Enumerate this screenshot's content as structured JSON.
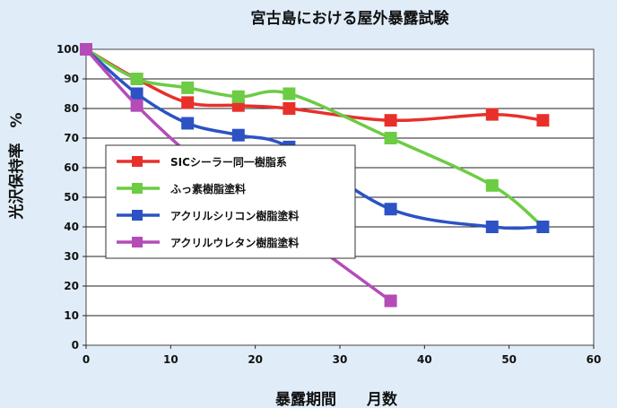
{
  "chart_data": {
    "type": "line",
    "title": "宮古島における屋外暴露試験",
    "xlabel": "暴露期間　　月数",
    "ylabel": "光沢保持率　%",
    "xlim": [
      0,
      60
    ],
    "ylim": [
      0,
      100
    ],
    "xticks": [
      0,
      10,
      20,
      30,
      40,
      50,
      60
    ],
    "yticks": [
      0,
      10,
      20,
      30,
      40,
      50,
      60,
      70,
      80,
      90,
      100
    ],
    "grid": true,
    "legend_position": "left-middle",
    "series": [
      {
        "name": "SICシーラー同一樹脂系",
        "color": "#e8302a",
        "points": [
          [
            0,
            100
          ],
          [
            6,
            90
          ],
          [
            12,
            82
          ],
          [
            18,
            81
          ],
          [
            24,
            80
          ],
          [
            36,
            76
          ],
          [
            48,
            78
          ],
          [
            54,
            76
          ]
        ]
      },
      {
        "name": "ふっ素樹脂塗料",
        "color": "#6ccc44",
        "points": [
          [
            0,
            100
          ],
          [
            6,
            90
          ],
          [
            12,
            87
          ],
          [
            18,
            84
          ],
          [
            24,
            85
          ],
          [
            36,
            70
          ],
          [
            48,
            54
          ],
          [
            54,
            40
          ]
        ]
      },
      {
        "name": "アクリルシリコン樹脂塗料",
        "color": "#2c52c4",
        "points": [
          [
            0,
            100
          ],
          [
            6,
            85
          ],
          [
            12,
            75
          ],
          [
            18,
            71
          ],
          [
            24,
            67
          ],
          [
            36,
            46
          ],
          [
            48,
            40
          ],
          [
            54,
            40
          ]
        ]
      },
      {
        "name": "アクリルウレタン樹脂塗料",
        "color": "#b44cb8",
        "points": [
          [
            0,
            100
          ],
          [
            6,
            81
          ],
          [
            12,
            65
          ],
          [
            18,
            52
          ],
          [
            24,
            40
          ],
          [
            36,
            15
          ]
        ]
      }
    ]
  }
}
